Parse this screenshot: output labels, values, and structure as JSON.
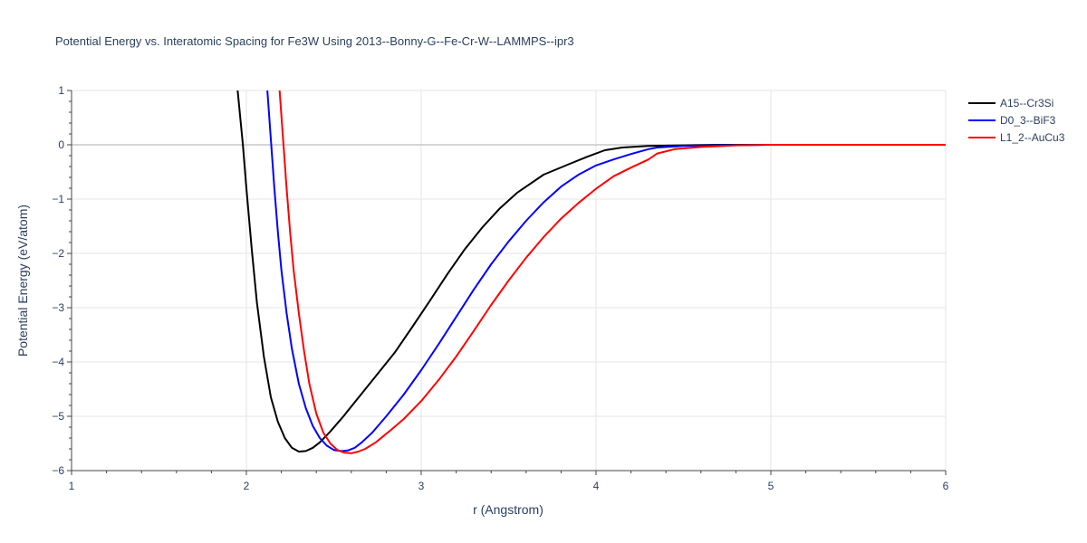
{
  "chart_data": {
    "type": "line",
    "title": "Potential Energy vs. Interatomic Spacing for Fe3W Using 2013--Bonny-G--Fe-Cr-W--LAMMPS--ipr3",
    "xlabel": "r (Angstrom)",
    "ylabel": "Potential Energy (eV/atom)",
    "xlim": [
      1,
      6
    ],
    "ylim": [
      -6,
      1
    ],
    "xticks": [
      "1",
      "2",
      "3",
      "4",
      "5",
      "6"
    ],
    "yticks": [
      "1",
      "0",
      "−1",
      "−2",
      "−3",
      "−4",
      "−5",
      "−6"
    ],
    "grid": true,
    "legend_position": "top-right",
    "series": [
      {
        "name": "A15--Cr3Si",
        "color": "#000000",
        "x": [
          1.95,
          1.98,
          2.0,
          2.03,
          2.06,
          2.1,
          2.14,
          2.18,
          2.22,
          2.26,
          2.3,
          2.34,
          2.38,
          2.42,
          2.48,
          2.55,
          2.65,
          2.75,
          2.85,
          2.95,
          3.05,
          3.15,
          3.25,
          3.35,
          3.45,
          3.55,
          3.7,
          3.85,
          3.95,
          4.05,
          4.15,
          4.3,
          4.5,
          4.7,
          5.0,
          5.5,
          6.0
        ],
        "y": [
          1.0,
          0.0,
          -0.8,
          -1.9,
          -2.9,
          -3.9,
          -4.65,
          -5.1,
          -5.4,
          -5.58,
          -5.65,
          -5.64,
          -5.58,
          -5.48,
          -5.28,
          -5.02,
          -4.62,
          -4.22,
          -3.82,
          -3.35,
          -2.87,
          -2.38,
          -1.92,
          -1.52,
          -1.17,
          -0.88,
          -0.55,
          -0.35,
          -0.22,
          -0.1,
          -0.05,
          -0.02,
          -0.01,
          0.0,
          0.0,
          0.0,
          0.0
        ]
      },
      {
        "name": "D0_3--BiF3",
        "color": "#0000ff",
        "x": [
          2.12,
          2.14,
          2.16,
          2.18,
          2.2,
          2.23,
          2.26,
          2.3,
          2.34,
          2.38,
          2.42,
          2.46,
          2.5,
          2.54,
          2.58,
          2.62,
          2.66,
          2.72,
          2.8,
          2.9,
          3.0,
          3.1,
          3.2,
          3.3,
          3.4,
          3.5,
          3.6,
          3.7,
          3.8,
          3.9,
          4.0,
          4.1,
          4.2,
          4.3,
          4.35,
          4.5,
          4.7,
          5.0,
          5.5,
          6.0
        ],
        "y": [
          1.0,
          0.1,
          -0.8,
          -1.6,
          -2.3,
          -3.1,
          -3.75,
          -4.4,
          -4.85,
          -5.18,
          -5.4,
          -5.54,
          -5.62,
          -5.64,
          -5.63,
          -5.58,
          -5.48,
          -5.3,
          -5.0,
          -4.6,
          -4.15,
          -3.67,
          -3.17,
          -2.67,
          -2.2,
          -1.78,
          -1.4,
          -1.06,
          -0.77,
          -0.55,
          -0.38,
          -0.27,
          -0.17,
          -0.08,
          -0.05,
          -0.02,
          -0.01,
          0.0,
          0.0,
          0.0
        ]
      },
      {
        "name": "L1_2--AuCu3",
        "color": "#ff0000",
        "x": [
          2.19,
          2.21,
          2.23,
          2.25,
          2.27,
          2.3,
          2.33,
          2.36,
          2.4,
          2.44,
          2.48,
          2.52,
          2.56,
          2.6,
          2.64,
          2.68,
          2.74,
          2.82,
          2.9,
          3.0,
          3.1,
          3.2,
          3.3,
          3.4,
          3.5,
          3.6,
          3.7,
          3.8,
          3.9,
          4.0,
          4.1,
          4.2,
          4.3,
          4.35,
          4.45,
          4.6,
          4.8,
          5.0,
          5.5,
          6.0
        ],
        "y": [
          1.0,
          0.1,
          -0.8,
          -1.6,
          -2.3,
          -3.1,
          -3.8,
          -4.4,
          -4.95,
          -5.3,
          -5.5,
          -5.62,
          -5.67,
          -5.68,
          -5.65,
          -5.6,
          -5.48,
          -5.27,
          -5.05,
          -4.72,
          -4.33,
          -3.9,
          -3.43,
          -2.95,
          -2.5,
          -2.08,
          -1.7,
          -1.36,
          -1.07,
          -0.81,
          -0.58,
          -0.42,
          -0.27,
          -0.16,
          -0.08,
          -0.04,
          -0.01,
          0.0,
          0.0,
          0.0
        ]
      }
    ]
  }
}
